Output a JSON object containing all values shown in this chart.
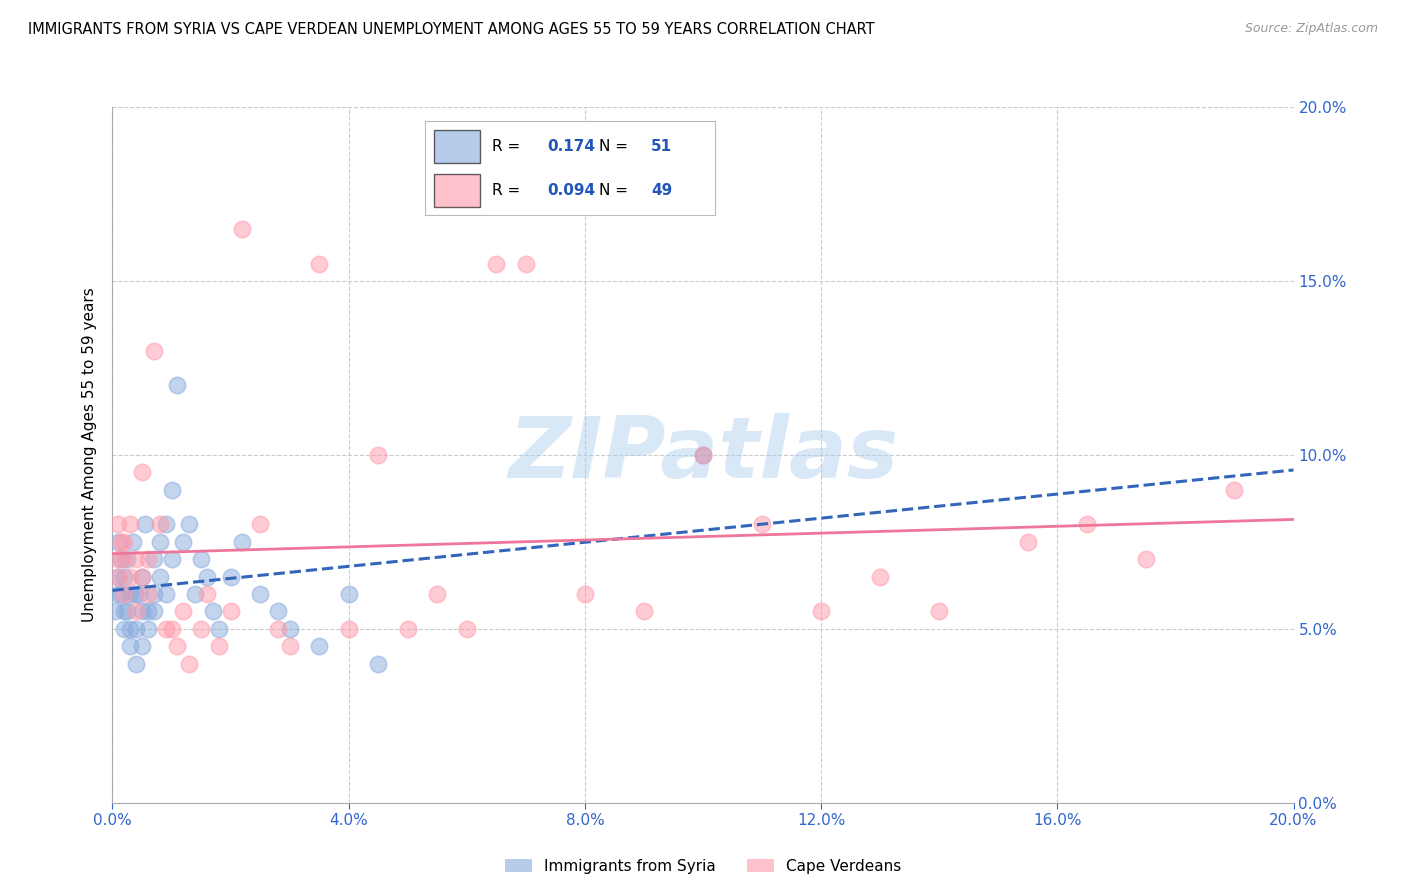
{
  "title": "IMMIGRANTS FROM SYRIA VS CAPE VERDEAN UNEMPLOYMENT AMONG AGES 55 TO 59 YEARS CORRELATION CHART",
  "source": "Source: ZipAtlas.com",
  "ylabel": "Unemployment Among Ages 55 to 59 years",
  "legend_label1": "Immigrants from Syria",
  "legend_label2": "Cape Verdeans",
  "R1": "0.174",
  "N1": "51",
  "R2": "0.094",
  "N2": "49",
  "xlim": [
    0.0,
    0.2
  ],
  "ylim": [
    0.0,
    0.2
  ],
  "xtick_vals": [
    0.0,
    0.04,
    0.08,
    0.12,
    0.16,
    0.2
  ],
  "ytick_vals": [
    0.0,
    0.05,
    0.1,
    0.15,
    0.2
  ],
  "color_syria": "#88AADD",
  "color_cape": "#FF99AA",
  "color_syria_line": "#3366BB",
  "color_cape_line": "#EE7799",
  "watermark": "ZIPatlas",
  "watermark_color": "#AACCEE",
  "syria_x": [
    0.0005,
    0.001,
    0.001,
    0.0015,
    0.001,
    0.002,
    0.002,
    0.0015,
    0.002,
    0.0025,
    0.003,
    0.003,
    0.0025,
    0.003,
    0.0035,
    0.004,
    0.004,
    0.0038,
    0.005,
    0.005,
    0.0045,
    0.005,
    0.006,
    0.006,
    0.0055,
    0.007,
    0.007,
    0.007,
    0.008,
    0.008,
    0.009,
    0.009,
    0.01,
    0.01,
    0.011,
    0.012,
    0.013,
    0.014,
    0.015,
    0.016,
    0.017,
    0.018,
    0.02,
    0.022,
    0.025,
    0.028,
    0.03,
    0.035,
    0.04,
    0.045,
    0.1
  ],
  "syria_y": [
    0.055,
    0.06,
    0.065,
    0.07,
    0.075,
    0.05,
    0.055,
    0.06,
    0.065,
    0.07,
    0.045,
    0.05,
    0.055,
    0.06,
    0.075,
    0.04,
    0.05,
    0.06,
    0.045,
    0.055,
    0.06,
    0.065,
    0.05,
    0.055,
    0.08,
    0.055,
    0.06,
    0.07,
    0.065,
    0.075,
    0.06,
    0.08,
    0.07,
    0.09,
    0.12,
    0.075,
    0.08,
    0.06,
    0.07,
    0.065,
    0.055,
    0.05,
    0.065,
    0.075,
    0.06,
    0.055,
    0.05,
    0.045,
    0.06,
    0.04,
    0.1
  ],
  "cape_x": [
    0.001,
    0.001,
    0.0015,
    0.001,
    0.002,
    0.002,
    0.002,
    0.003,
    0.003,
    0.004,
    0.004,
    0.005,
    0.005,
    0.006,
    0.006,
    0.007,
    0.008,
    0.009,
    0.01,
    0.011,
    0.012,
    0.013,
    0.015,
    0.016,
    0.018,
    0.02,
    0.022,
    0.025,
    0.028,
    0.03,
    0.035,
    0.04,
    0.045,
    0.05,
    0.055,
    0.06,
    0.065,
    0.07,
    0.08,
    0.09,
    0.1,
    0.11,
    0.12,
    0.13,
    0.14,
    0.155,
    0.165,
    0.175,
    0.19
  ],
  "cape_y": [
    0.065,
    0.07,
    0.075,
    0.08,
    0.06,
    0.07,
    0.075,
    0.065,
    0.08,
    0.055,
    0.07,
    0.065,
    0.095,
    0.06,
    0.07,
    0.13,
    0.08,
    0.05,
    0.05,
    0.045,
    0.055,
    0.04,
    0.05,
    0.06,
    0.045,
    0.055,
    0.165,
    0.08,
    0.05,
    0.045,
    0.155,
    0.05,
    0.1,
    0.05,
    0.06,
    0.05,
    0.155,
    0.155,
    0.06,
    0.055,
    0.1,
    0.08,
    0.055,
    0.065,
    0.055,
    0.075,
    0.08,
    0.07,
    0.09
  ]
}
